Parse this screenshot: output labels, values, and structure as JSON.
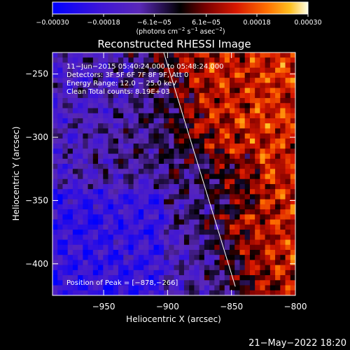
{
  "chart_data": {
    "type": "heatmap",
    "title": "Reconstructed RHESSI Image",
    "xlabel": "Heliocentric X (arcsec)",
    "ylabel": "Heliocentric Y (arcsec)",
    "xlim": [
      -990,
      -800
    ],
    "ylim": [
      -425,
      -233
    ],
    "xticks": [
      {
        "value": -950,
        "label": "−950"
      },
      {
        "value": -900,
        "label": "−900"
      },
      {
        "value": -850,
        "label": "−850"
      },
      {
        "value": -800,
        "label": "−800"
      }
    ],
    "yticks": [
      {
        "value": -250,
        "label": "−250"
      },
      {
        "value": -300,
        "label": "−300"
      },
      {
        "value": -350,
        "label": "−350"
      },
      {
        "value": -400,
        "label": "−400"
      }
    ],
    "colorbar": {
      "range": [
        -0.0003,
        0.0003
      ],
      "unit_label_parts": [
        "(photons cm",
        "−2",
        " s",
        "−1",
        " asec",
        "−2",
        ")"
      ],
      "ticks": [
        {
          "value": -0.0003,
          "label": "−0.00030"
        },
        {
          "value": -0.00018,
          "label": "−0.00018"
        },
        {
          "value": -6.1e-05,
          "label": "−6.1e−05"
        },
        {
          "value": 6.1e-05,
          "label": "6.1e−05"
        },
        {
          "value": 0.00018,
          "label": "0.00018"
        },
        {
          "value": 0.0003,
          "label": "0.00030"
        }
      ]
    },
    "annotations": [
      "11−Jun−2015 05:40:24.000 to 05:48:24.000",
      "Detectors: 3F 5F 6F 7F 8F 9F, Att 0",
      "Energy Range: 12.0 − 25.0 keV",
      "Clean      Total counts: 8.19E+03"
    ],
    "peak_label": "Position of Peak = [−878,−266]",
    "limb_line": [
      [
        -903,
        -233
      ],
      [
        -847,
        -418
      ]
    ],
    "grid": false
  },
  "footer": {
    "timestamp": "21−May−2022 18:20"
  },
  "colors": {
    "background": "#000000",
    "frame": "#ffffff"
  }
}
